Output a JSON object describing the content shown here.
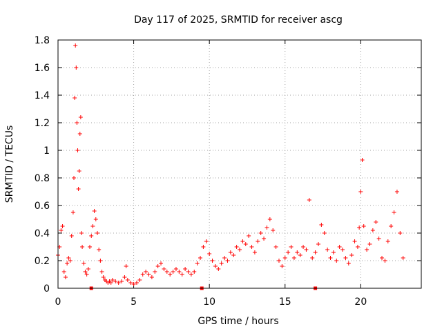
{
  "chart_data": {
    "type": "scatter",
    "title": "Day 117 of 2025, SRMTID for receiver ascg",
    "xlabel": "GPS time / hours",
    "ylabel": "SRMTID / TECUs",
    "xlim": [
      0,
      24
    ],
    "ylim": [
      0,
      1.8
    ],
    "xticks": [
      0,
      5,
      10,
      15,
      20
    ],
    "xtick_labels": [
      "0",
      "5",
      "10",
      "15",
      "20"
    ],
    "yticks": [
      0,
      0.2,
      0.4,
      0.6,
      0.8,
      1.0,
      1.2,
      1.4,
      1.6,
      1.8
    ],
    "ytick_labels": [
      "0",
      "0.2",
      "0.4",
      "0.6",
      "0.8",
      "1",
      "1.2",
      "1.4",
      "1.6",
      "1.8"
    ],
    "grid": true,
    "marker": "+",
    "color": "#ff0000",
    "series": [
      {
        "name": "SRMTID",
        "x": [
          0.0,
          0.1,
          0.2,
          0.3,
          0.4,
          0.5,
          0.6,
          0.7,
          0.8,
          0.9,
          1.0,
          1.05,
          1.1,
          1.15,
          1.2,
          1.25,
          1.3,
          1.35,
          1.4,
          1.45,
          1.5,
          1.55,
          1.6,
          1.7,
          1.8,
          1.9,
          2.0,
          2.1,
          2.2,
          2.3,
          2.4,
          2.5,
          2.6,
          2.7,
          2.8,
          2.9,
          3.0,
          3.1,
          3.2,
          3.3,
          3.4,
          3.5,
          3.6,
          3.8,
          4.0,
          4.2,
          4.4,
          4.5,
          4.6,
          4.8,
          5.0,
          5.2,
          5.4,
          5.6,
          5.8,
          6.0,
          6.2,
          6.4,
          6.6,
          6.8,
          7.0,
          7.2,
          7.4,
          7.6,
          7.8,
          8.0,
          8.2,
          8.4,
          8.6,
          8.8,
          9.0,
          9.2,
          9.4,
          9.6,
          9.8,
          10.0,
          10.2,
          10.4,
          10.6,
          10.8,
          11.0,
          11.2,
          11.4,
          11.6,
          11.8,
          12.0,
          12.2,
          12.4,
          12.6,
          12.8,
          13.0,
          13.2,
          13.4,
          13.6,
          13.8,
          14.0,
          14.2,
          14.4,
          14.6,
          14.8,
          15.0,
          15.2,
          15.4,
          15.6,
          15.8,
          16.0,
          16.2,
          16.4,
          16.6,
          16.8,
          17.0,
          17.2,
          17.4,
          17.6,
          17.8,
          18.0,
          18.2,
          18.4,
          18.6,
          18.8,
          19.0,
          19.2,
          19.4,
          19.6,
          19.8,
          19.9,
          20.0,
          20.1,
          20.2,
          20.4,
          20.6,
          20.8,
          21.0,
          21.2,
          21.4,
          21.6,
          21.8,
          22.0,
          22.2,
          22.4,
          22.6,
          22.8
        ],
        "y": [
          0.24,
          0.3,
          0.42,
          0.45,
          0.12,
          0.08,
          0.18,
          0.22,
          0.2,
          0.38,
          0.55,
          0.8,
          1.38,
          1.76,
          1.6,
          1.2,
          1.0,
          0.72,
          0.85,
          1.12,
          1.24,
          0.4,
          0.3,
          0.18,
          0.12,
          0.1,
          0.14,
          0.3,
          0.38,
          0.45,
          0.56,
          0.5,
          0.4,
          0.28,
          0.2,
          0.12,
          0.08,
          0.06,
          0.05,
          0.04,
          0.05,
          0.04,
          0.06,
          0.05,
          0.04,
          0.05,
          0.08,
          0.16,
          0.06,
          0.04,
          0.03,
          0.04,
          0.06,
          0.1,
          0.12,
          0.1,
          0.08,
          0.12,
          0.16,
          0.18,
          0.14,
          0.12,
          0.1,
          0.12,
          0.14,
          0.12,
          0.1,
          0.14,
          0.12,
          0.1,
          0.12,
          0.18,
          0.22,
          0.3,
          0.34,
          0.25,
          0.2,
          0.16,
          0.14,
          0.18,
          0.22,
          0.2,
          0.26,
          0.24,
          0.3,
          0.28,
          0.34,
          0.32,
          0.38,
          0.3,
          0.26,
          0.34,
          0.4,
          0.36,
          0.44,
          0.5,
          0.42,
          0.3,
          0.2,
          0.16,
          0.22,
          0.26,
          0.3,
          0.22,
          0.26,
          0.24,
          0.3,
          0.28,
          0.64,
          0.22,
          0.26,
          0.32,
          0.46,
          0.4,
          0.28,
          0.22,
          0.26,
          0.2,
          0.3,
          0.28,
          0.22,
          0.18,
          0.24,
          0.34,
          0.3,
          0.44,
          0.7,
          0.93,
          0.45,
          0.28,
          0.32,
          0.42,
          0.48,
          0.36,
          0.22,
          0.2,
          0.34,
          0.45,
          0.55,
          0.7,
          0.4,
          0.22
        ]
      }
    ],
    "axis_markers": {
      "x": [
        2.2,
        9.5,
        17.0
      ],
      "y": [
        0,
        0,
        0
      ]
    }
  }
}
